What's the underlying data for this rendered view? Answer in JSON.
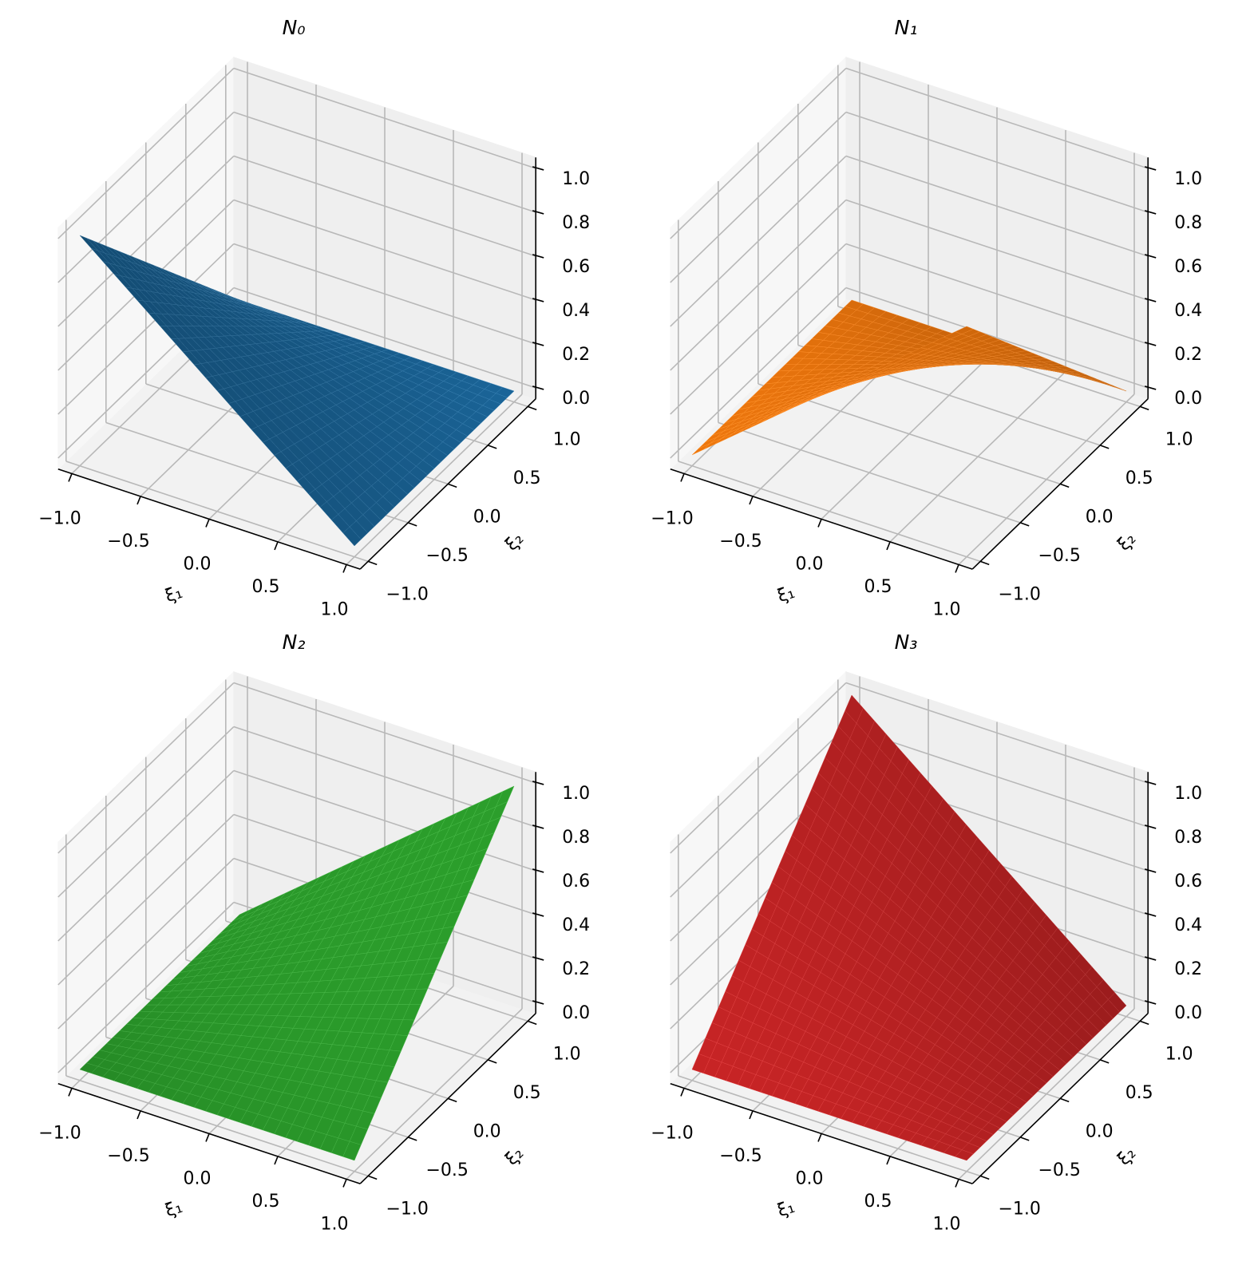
{
  "chart_data": [
    {
      "type": "surface",
      "title": "N₀",
      "color": "#1f77b4",
      "xlabel": "ξ₁",
      "ylabel": "ξ₂",
      "x": [
        -1,
        1
      ],
      "y": [
        -1,
        1
      ],
      "z": [
        [
          1,
          0
        ],
        [
          0,
          0
        ]
      ],
      "xlim": [
        -1.1,
        1.1
      ],
      "ylim": [
        -1.1,
        1.1
      ],
      "zlim": [
        -0.05,
        1.05
      ],
      "xticks": [
        {
          "value": -1,
          "label": "−1.0"
        },
        {
          "value": -0.5,
          "label": "−0.5"
        },
        {
          "value": 0,
          "label": "0.0"
        },
        {
          "value": 0.5,
          "label": "0.5"
        },
        {
          "value": 1,
          "label": "1.0"
        }
      ],
      "yticks": [
        {
          "value": -1,
          "label": "−1.0"
        },
        {
          "value": -0.5,
          "label": "−0.5"
        },
        {
          "value": 0,
          "label": "0.0"
        },
        {
          "value": 0.5,
          "label": "0.5"
        },
        {
          "value": 1,
          "label": "1.0"
        }
      ],
      "zticks": [
        {
          "value": 0,
          "label": "0.0"
        },
        {
          "value": 0.2,
          "label": "0.2"
        },
        {
          "value": 0.4,
          "label": "0.4"
        },
        {
          "value": 0.6,
          "label": "0.6"
        },
        {
          "value": 0.8,
          "label": "0.8"
        },
        {
          "value": 1,
          "label": "1.0"
        }
      ],
      "grid": true
    },
    {
      "type": "surface",
      "title": "N₁",
      "color": "#ff7f0e",
      "xlabel": "ξ₁",
      "ylabel": "ξ₂",
      "x": [
        -1,
        1
      ],
      "y": [
        -1,
        1
      ],
      "z": [
        [
          0,
          1
        ],
        [
          0,
          0
        ]
      ],
      "xlim": [
        -1.1,
        1.1
      ],
      "ylim": [
        -1.1,
        1.1
      ],
      "zlim": [
        -0.05,
        1.05
      ],
      "xticks": [
        {
          "value": -1,
          "label": "−1.0"
        },
        {
          "value": -0.5,
          "label": "−0.5"
        },
        {
          "value": 0,
          "label": "0.0"
        },
        {
          "value": 0.5,
          "label": "0.5"
        },
        {
          "value": 1,
          "label": "1.0"
        }
      ],
      "yticks": [
        {
          "value": -1,
          "label": "−1.0"
        },
        {
          "value": -0.5,
          "label": "−0.5"
        },
        {
          "value": 0,
          "label": "0.0"
        },
        {
          "value": 0.5,
          "label": "0.5"
        },
        {
          "value": 1,
          "label": "1.0"
        }
      ],
      "zticks": [
        {
          "value": 0,
          "label": "0.0"
        },
        {
          "value": 0.2,
          "label": "0.2"
        },
        {
          "value": 0.4,
          "label": "0.4"
        },
        {
          "value": 0.6,
          "label": "0.6"
        },
        {
          "value": 0.8,
          "label": "0.8"
        },
        {
          "value": 1,
          "label": "1.0"
        }
      ],
      "grid": true
    },
    {
      "type": "surface",
      "title": "N₂",
      "color": "#2ca02c",
      "xlabel": "ξ₁",
      "ylabel": "ξ₂",
      "x": [
        -1,
        1
      ],
      "y": [
        -1,
        1
      ],
      "z": [
        [
          0,
          0
        ],
        [
          0,
          1
        ]
      ],
      "xlim": [
        -1.1,
        1.1
      ],
      "ylim": [
        -1.1,
        1.1
      ],
      "zlim": [
        -0.05,
        1.05
      ],
      "xticks": [
        {
          "value": -1,
          "label": "−1.0"
        },
        {
          "value": -0.5,
          "label": "−0.5"
        },
        {
          "value": 0,
          "label": "0.0"
        },
        {
          "value": 0.5,
          "label": "0.5"
        },
        {
          "value": 1,
          "label": "1.0"
        }
      ],
      "yticks": [
        {
          "value": -1,
          "label": "−1.0"
        },
        {
          "value": -0.5,
          "label": "−0.5"
        },
        {
          "value": 0,
          "label": "0.0"
        },
        {
          "value": 0.5,
          "label": "0.5"
        },
        {
          "value": 1,
          "label": "1.0"
        }
      ],
      "zticks": [
        {
          "value": 0,
          "label": "0.0"
        },
        {
          "value": 0.2,
          "label": "0.2"
        },
        {
          "value": 0.4,
          "label": "0.4"
        },
        {
          "value": 0.6,
          "label": "0.6"
        },
        {
          "value": 0.8,
          "label": "0.8"
        },
        {
          "value": 1,
          "label": "1.0"
        }
      ],
      "grid": true
    },
    {
      "type": "surface",
      "title": "N₃",
      "color": "#d62728",
      "xlabel": "ξ₁",
      "ylabel": "ξ₂",
      "x": [
        -1,
        1
      ],
      "y": [
        -1,
        1
      ],
      "z": [
        [
          0,
          0
        ],
        [
          1,
          0
        ]
      ],
      "xlim": [
        -1.1,
        1.1
      ],
      "ylim": [
        -1.1,
        1.1
      ],
      "zlim": [
        -0.05,
        1.05
      ],
      "xticks": [
        {
          "value": -1,
          "label": "−1.0"
        },
        {
          "value": -0.5,
          "label": "−0.5"
        },
        {
          "value": 0,
          "label": "0.0"
        },
        {
          "value": 0.5,
          "label": "0.5"
        },
        {
          "value": 1,
          "label": "1.0"
        }
      ],
      "yticks": [
        {
          "value": -1,
          "label": "−1.0"
        },
        {
          "value": -0.5,
          "label": "−0.5"
        },
        {
          "value": 0,
          "label": "0.0"
        },
        {
          "value": 0.5,
          "label": "0.5"
        },
        {
          "value": 1,
          "label": "1.0"
        }
      ],
      "zticks": [
        {
          "value": 0,
          "label": "0.0"
        },
        {
          "value": 0.2,
          "label": "0.2"
        },
        {
          "value": 0.4,
          "label": "0.4"
        },
        {
          "value": 0.6,
          "label": "0.6"
        },
        {
          "value": 0.8,
          "label": "0.8"
        },
        {
          "value": 1,
          "label": "1.0"
        }
      ],
      "grid": true
    }
  ]
}
